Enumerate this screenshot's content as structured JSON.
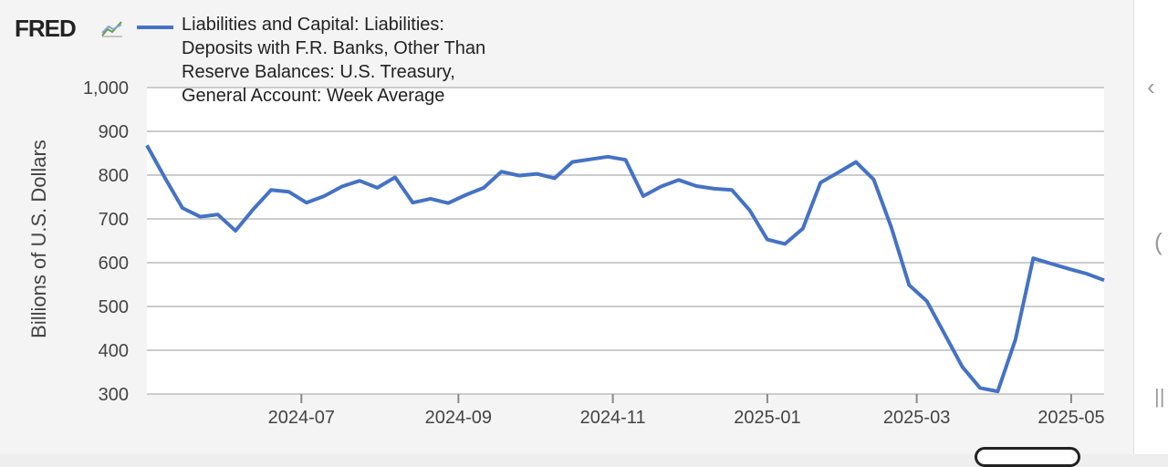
{
  "brand": "FRED",
  "icons": {
    "logo": "chart-icon"
  },
  "colors": {
    "series": "#4572c4",
    "plot_bg": "#ffffff",
    "grid": "#cccccc",
    "panel_bg": "#f4f4f4"
  },
  "chart_data": {
    "type": "line",
    "title": "",
    "xlabel": "",
    "ylabel": "Billions of U.S. Dollars",
    "ylim": [
      300,
      1000
    ],
    "yticks": [
      300,
      400,
      500,
      600,
      700,
      800,
      900,
      1000
    ],
    "ytick_labels": [
      "300",
      "400",
      "500",
      "600",
      "700",
      "800",
      "900",
      "1,000"
    ],
    "xlim": [
      "2024-05-01",
      "2025-05-14"
    ],
    "xticks": [
      "2024-07-01",
      "2024-09-01",
      "2024-11-01",
      "2025-01-01",
      "2025-03-01",
      "2025-05-01"
    ],
    "xtick_labels": [
      "2024-07",
      "2024-09",
      "2024-11",
      "2025-01",
      "2025-03",
      "2025-05"
    ],
    "grid": true,
    "legend_position": "top-left",
    "series": [
      {
        "name": "Liabilities and Capital: Liabilities: Deposits with F.R. Banks, Other Than Reserve Balances: U.S. Treasury, General Account: Week Average",
        "color": "#4572c4",
        "x": [
          "2024-05-01",
          "2024-05-08",
          "2024-05-15",
          "2024-05-22",
          "2024-05-29",
          "2024-06-05",
          "2024-06-12",
          "2024-06-19",
          "2024-06-26",
          "2024-07-03",
          "2024-07-10",
          "2024-07-17",
          "2024-07-24",
          "2024-07-31",
          "2024-08-07",
          "2024-08-14",
          "2024-08-21",
          "2024-08-28",
          "2024-09-04",
          "2024-09-11",
          "2024-09-18",
          "2024-09-25",
          "2024-10-02",
          "2024-10-09",
          "2024-10-16",
          "2024-10-23",
          "2024-10-30",
          "2024-11-06",
          "2024-11-13",
          "2024-11-20",
          "2024-11-27",
          "2024-12-04",
          "2024-12-11",
          "2024-12-18",
          "2024-12-25",
          "2025-01-01",
          "2025-01-08",
          "2025-01-15",
          "2025-01-22",
          "2025-01-29",
          "2025-02-05",
          "2025-02-12",
          "2025-02-19",
          "2025-02-26",
          "2025-03-05",
          "2025-03-12",
          "2025-03-19",
          "2025-03-26",
          "2025-04-02",
          "2025-04-09",
          "2025-04-16",
          "2025-04-23",
          "2025-04-30",
          "2025-05-07",
          "2025-05-14"
        ],
        "values": [
          868,
          795,
          725,
          705,
          710,
          673,
          722,
          766,
          762,
          737,
          752,
          774,
          787,
          771,
          795,
          737,
          746,
          736,
          755,
          771,
          808,
          799,
          803,
          793,
          830,
          836,
          842,
          835,
          752,
          774,
          789,
          775,
          769,
          766,
          720,
          653,
          643,
          678,
          783,
          806,
          830,
          790,
          680,
          549,
          512,
          437,
          362,
          314,
          306,
          425,
          610,
          598,
          586,
          575,
          560
        ]
      }
    ]
  }
}
